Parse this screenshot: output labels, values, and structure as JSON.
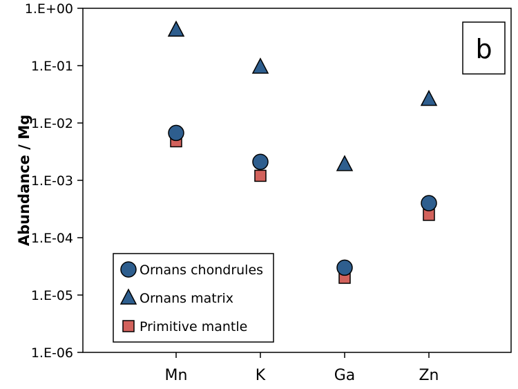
{
  "chart_data": {
    "type": "scatter",
    "panel_label": "b",
    "ylabel": "Abundance / Mg",
    "xlabel": "",
    "y_scale": "log",
    "ylim": [
      1e-06,
      1
    ],
    "y_tick_values": [
      1,
      0.1,
      0.01,
      0.001,
      0.0001,
      1e-05,
      1e-06
    ],
    "y_tick_labels": [
      "1.E+00",
      "1.E-01",
      "1.E-02",
      "1.E-03",
      "1.E-04",
      "1.E-05",
      "1.E-06"
    ],
    "categories": [
      "Mn",
      "K",
      "Ga",
      "Zn"
    ],
    "grid": false,
    "legend_position": "bottom-left",
    "series": [
      {
        "name": "Ornans chondrules",
        "marker": "circle",
        "color": "#2e5e8e",
        "values": [
          0.0067,
          0.0021,
          3e-05,
          0.0004
        ]
      },
      {
        "name": "Ornans matrix",
        "marker": "triangle",
        "color": "#2e5e8e",
        "values": [
          0.42,
          0.095,
          0.0019,
          0.026
        ]
      },
      {
        "name": "Primitive mantle",
        "marker": "square",
        "color": "#d2625c",
        "values": [
          0.0048,
          0.0012,
          2e-05,
          0.00025
        ]
      }
    ]
  }
}
